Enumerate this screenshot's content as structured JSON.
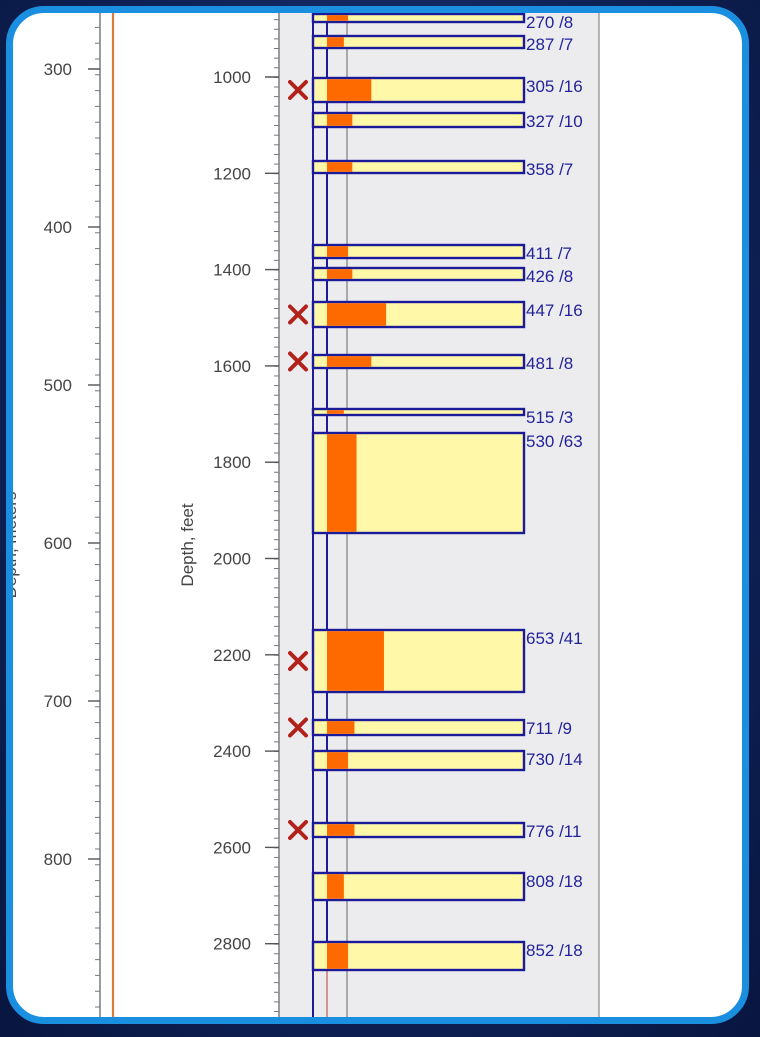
{
  "axes": {
    "meters": {
      "label": "Depth, meters",
      "ticks": [
        "300",
        "400",
        "500",
        "600",
        "700",
        "800"
      ]
    },
    "feet": {
      "label": "Depth, feet",
      "ticks": [
        "1000",
        "1200",
        "1400",
        "1600",
        "1800",
        "2000",
        "2200",
        "2400",
        "2600",
        "2800"
      ]
    }
  },
  "colors": {
    "frame": "#1a8fe0",
    "outline": "#1b1b9a",
    "sand": "#fff8a8",
    "fill": "#ff6a00",
    "marker": "#b3211b",
    "orange_line": "#e07b39",
    "column_bg": "#ececef"
  },
  "intervals": [
    {
      "label": "270 /8",
      "fill_fraction": 0.1,
      "marked": false
    },
    {
      "label": "287 /7",
      "fill_fraction": 0.08,
      "marked": false
    },
    {
      "label": "305 /16",
      "fill_fraction": 0.21,
      "marked": true
    },
    {
      "label": "327 /10",
      "fill_fraction": 0.12,
      "marked": false
    },
    {
      "label": "358 /7",
      "fill_fraction": 0.12,
      "marked": false
    },
    {
      "label": "411 /7",
      "fill_fraction": 0.1,
      "marked": false
    },
    {
      "label": "426 /8",
      "fill_fraction": 0.12,
      "marked": false
    },
    {
      "label": "447 /16",
      "fill_fraction": 0.28,
      "marked": true
    },
    {
      "label": "481 /8",
      "fill_fraction": 0.21,
      "marked": true
    },
    {
      "label": "515 /3",
      "fill_fraction": 0.08,
      "marked": false
    },
    {
      "label": "530 /63",
      "fill_fraction": 0.14,
      "marked": false
    },
    {
      "label": "653 /41",
      "fill_fraction": 0.27,
      "marked": true
    },
    {
      "label": "711 /9",
      "fill_fraction": 0.13,
      "marked": true
    },
    {
      "label": "730 /14",
      "fill_fraction": 0.1,
      "marked": false
    },
    {
      "label": "776 /11",
      "fill_fraction": 0.13,
      "marked": true
    },
    {
      "label": "808 /18",
      "fill_fraction": 0.08,
      "marked": false
    },
    {
      "label": "852 /18",
      "fill_fraction": 0.1,
      "marked": false
    }
  ]
}
